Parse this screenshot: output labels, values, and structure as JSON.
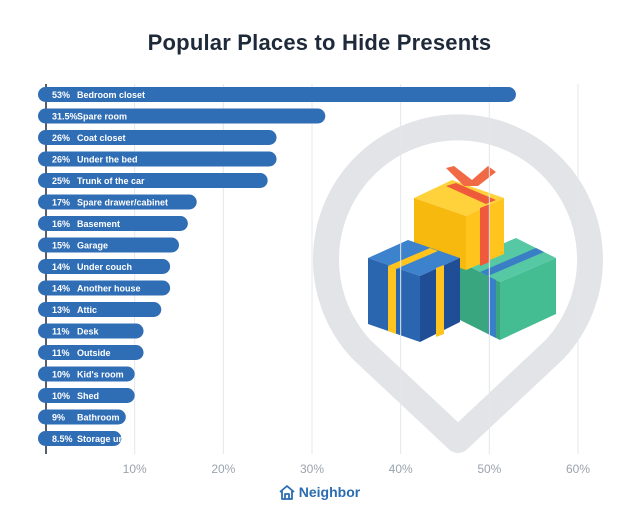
{
  "chart_data": {
    "type": "bar",
    "orientation": "horizontal",
    "title": "Popular Places to Hide Presents",
    "categories": [
      "Bedroom closet",
      "Spare room",
      "Coat closet",
      "Under the bed",
      "Trunk of the car",
      "Spare drawer/cabinet",
      "Basement",
      "Garage",
      "Under couch",
      "Another house",
      "Attic",
      "Desk",
      "Outside",
      "Kid's room",
      "Shed",
      "Bathroom",
      "Storage unit"
    ],
    "value_labels": [
      "53%",
      "31.5%",
      "26%",
      "26%",
      "25%",
      "17%",
      "16%",
      "15%",
      "14%",
      "14%",
      "13%",
      "11%",
      "11%",
      "10%",
      "10%",
      "9%",
      "8.5%"
    ],
    "values": [
      53,
      31.5,
      26,
      26,
      25,
      17,
      16,
      15,
      14,
      14,
      13,
      11,
      11,
      10,
      10,
      9,
      8.5
    ],
    "xlim": [
      0,
      60
    ],
    "xticks": [
      10,
      20,
      30,
      40,
      50,
      60
    ],
    "xtick_labels": [
      "10%",
      "20%",
      "30%",
      "40%",
      "50%",
      "60%"
    ],
    "grid": true,
    "colors": {
      "bar": "#2f6db5",
      "grid": "#e4e7ea",
      "axis": "#1e2a3a"
    }
  },
  "brand": {
    "name": "Neighbor",
    "icon": "house-icon",
    "color": "#2b6cb0"
  }
}
